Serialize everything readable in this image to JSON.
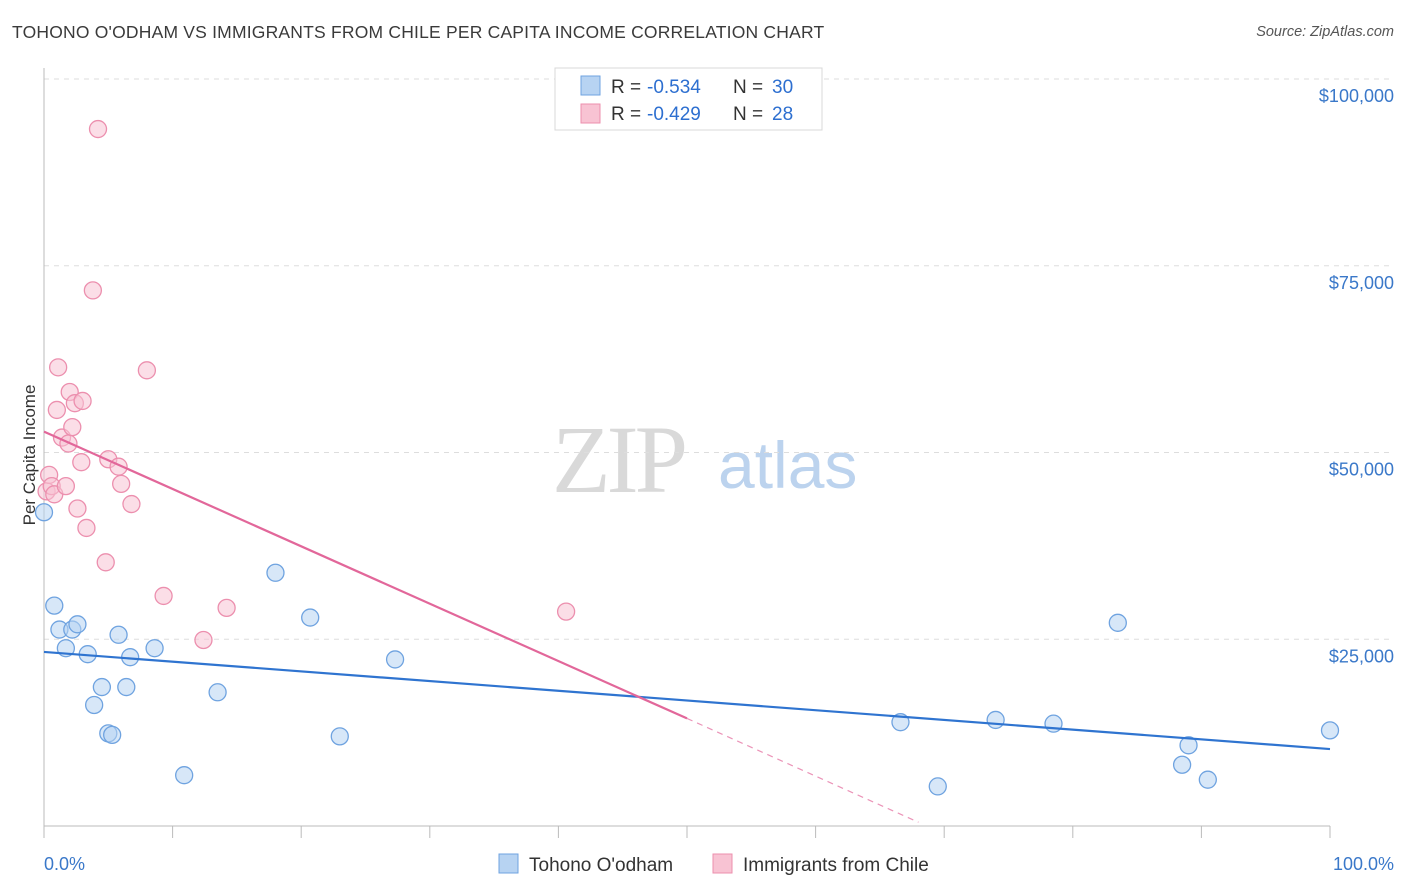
{
  "title": "TOHONO O'ODHAM VS IMMIGRANTS FROM CHILE PER CAPITA INCOME CORRELATION CHART",
  "source": "Source: ZipAtlas.com",
  "watermark": {
    "zip": "ZIP",
    "atlas": "atlas"
  },
  "colors": {
    "blue_fill": "#b7d3f2",
    "blue_stroke": "#6fa3e0",
    "blue_line": "#2f74d0",
    "pink_fill": "#f8c3d3",
    "pink_stroke": "#ec8fae",
    "pink_line": "#e2679a",
    "grid": "#dddddd",
    "axis_label": "#3a78c9"
  },
  "legend_top": [
    {
      "r_label": "R =",
      "r_value": "-0.534",
      "n_label": "N =",
      "n_value": "30"
    },
    {
      "r_label": "R =",
      "r_value": "-0.429",
      "n_label": "N =",
      "n_value": "28"
    }
  ],
  "legend_bottom": [
    "Tohono O'odham",
    "Immigrants from Chile"
  ],
  "chart_data": {
    "type": "scatter",
    "title": "TOHONO O'ODHAM VS IMMIGRANTS FROM CHILE PER CAPITA INCOME CORRELATION CHART",
    "xlabel": "",
    "ylabel": "Per Capita Income",
    "xlim": [
      0,
      100
    ],
    "ylim": [
      0,
      105000
    ],
    "y_ticks": [
      25000,
      50000,
      75000,
      100000
    ],
    "y_tick_labels": [
      "$25,000",
      "$50,000",
      "$75,000",
      "$100,000"
    ],
    "x_tick_labels": [
      "0.0%",
      "100.0%"
    ],
    "series": [
      {
        "name": "Tohono O'odham",
        "r": -0.534,
        "n": 30,
        "points": [
          [
            0.0,
            42000
          ],
          [
            0.8,
            29500
          ],
          [
            1.2,
            26300
          ],
          [
            1.7,
            23800
          ],
          [
            2.2,
            26300
          ],
          [
            2.6,
            27000
          ],
          [
            3.4,
            23000
          ],
          [
            3.9,
            16200
          ],
          [
            4.5,
            18600
          ],
          [
            5.0,
            12400
          ],
          [
            5.3,
            12200
          ],
          [
            5.8,
            25600
          ],
          [
            6.4,
            18600
          ],
          [
            6.7,
            22600
          ],
          [
            8.6,
            23800
          ],
          [
            10.9,
            6800
          ],
          [
            13.5,
            17900
          ],
          [
            18.0,
            33900
          ],
          [
            20.7,
            27900
          ],
          [
            23.0,
            12000
          ],
          [
            27.3,
            22300
          ],
          [
            66.6,
            13900
          ],
          [
            69.5,
            5300
          ],
          [
            74.0,
            14200
          ],
          [
            78.5,
            13700
          ],
          [
            83.5,
            27200
          ],
          [
            88.5,
            8200
          ],
          [
            89.0,
            10800
          ],
          [
            90.5,
            6200
          ],
          [
            100.0,
            12800
          ]
        ],
        "trend": {
          "x0": 0,
          "y0": 23300,
          "x1": 100,
          "y1": 10300
        }
      },
      {
        "name": "Immigrants from Chile",
        "r": -0.429,
        "n": 28,
        "points": [
          [
            0.2,
            44800
          ],
          [
            0.4,
            47000
          ],
          [
            0.6,
            45500
          ],
          [
            0.8,
            44400
          ],
          [
            1.0,
            55700
          ],
          [
            1.1,
            61400
          ],
          [
            1.4,
            52000
          ],
          [
            1.7,
            45500
          ],
          [
            1.9,
            51200
          ],
          [
            2.0,
            58100
          ],
          [
            2.2,
            53400
          ],
          [
            2.4,
            56600
          ],
          [
            2.6,
            42500
          ],
          [
            2.9,
            48700
          ],
          [
            3.0,
            56900
          ],
          [
            3.3,
            39900
          ],
          [
            3.8,
            71700
          ],
          [
            4.2,
            93300
          ],
          [
            4.8,
            35300
          ],
          [
            5.0,
            49100
          ],
          [
            5.8,
            48100
          ],
          [
            6.0,
            45800
          ],
          [
            6.8,
            43100
          ],
          [
            8.0,
            61000
          ],
          [
            9.3,
            30800
          ],
          [
            12.4,
            24900
          ],
          [
            14.2,
            29200
          ],
          [
            40.6,
            28700
          ]
        ],
        "trend": {
          "x0": 0,
          "y0": 52800,
          "x1": 50,
          "y1": 14400
        },
        "trend_dashed": {
          "x0": 50,
          "y0": 14400,
          "x1": 68,
          "y1": 500
        }
      }
    ]
  }
}
